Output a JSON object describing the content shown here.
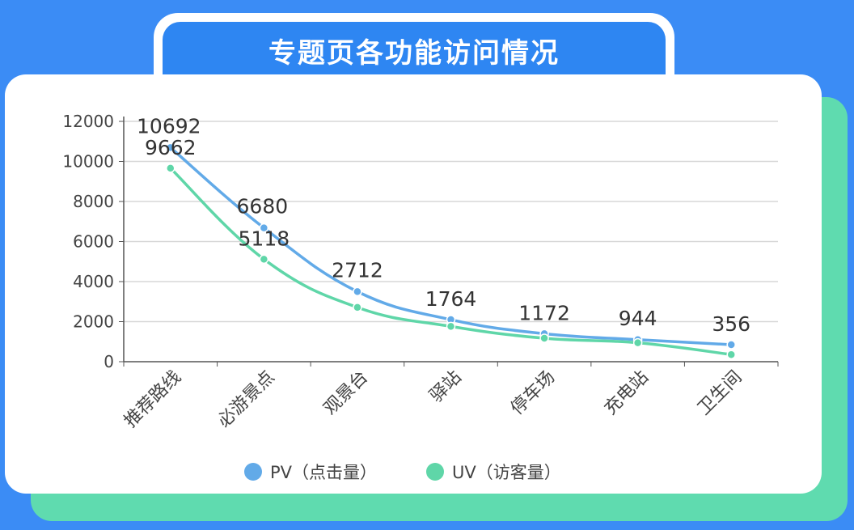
{
  "page": {
    "title": "专题页各功能访问情况"
  },
  "colors": {
    "background": "#3b8cf5",
    "title_tab": "#2e86f2",
    "accent_green": "#5fdbaf",
    "pv": "#62aae8",
    "uv": "#5fd6a8",
    "grid": "#d7d7d7",
    "axis": "#555555"
  },
  "legend": {
    "pv_label": "PV（点击量）",
    "uv_label": "UV（访客量）"
  },
  "chart_data": {
    "type": "line",
    "title": "专题页各功能访问情况",
    "categories": [
      "推荐路线",
      "必游景点",
      "观景台",
      "驿站",
      "停车场",
      "充电站",
      "卫生间"
    ],
    "series": [
      {
        "name": "PV（点击量）",
        "values": [
          10692,
          6680,
          3500,
          2100,
          1400,
          1100,
          850
        ],
        "labels": [
          "10692",
          "6680",
          "",
          "",
          "",
          "",
          ""
        ]
      },
      {
        "name": "UV（访客量）",
        "values": [
          9662,
          5118,
          2712,
          1764,
          1172,
          944,
          356
        ],
        "labels": [
          "9662",
          "5118",
          "2712",
          "1764",
          "1172",
          "944",
          "356"
        ]
      }
    ],
    "yticks": [
      "0",
      "2000",
      "4000",
      "6000",
      "8000",
      "10000",
      "12000"
    ],
    "ylim": [
      0,
      12000
    ],
    "grid": true,
    "legend_position": "bottom"
  }
}
